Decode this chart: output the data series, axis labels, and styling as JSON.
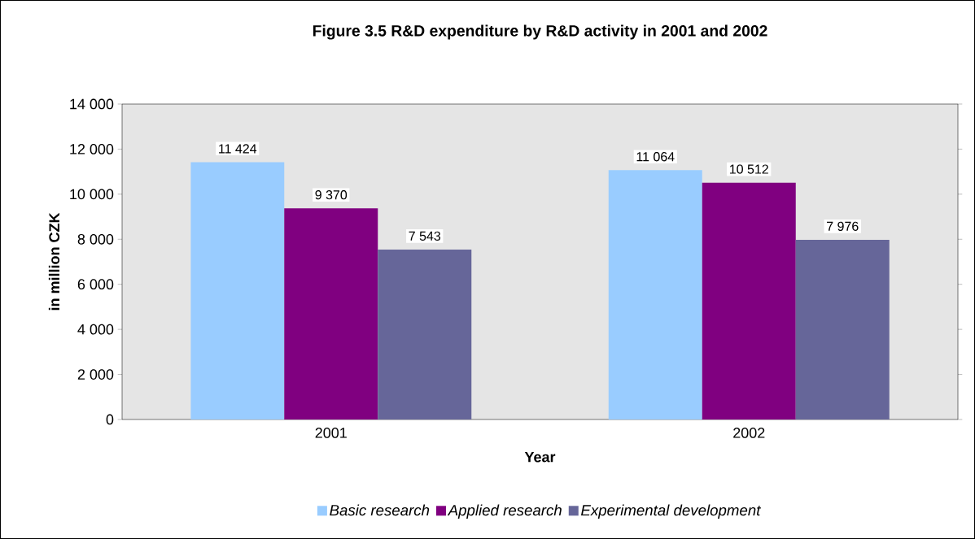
{
  "chart_data": {
    "type": "bar",
    "title": "Figure 3.5   R&D expenditure by R&D activity in 2001 and 2002",
    "xlabel": "Year",
    "ylabel": "in million CZK",
    "categories": [
      "2001",
      "2002"
    ],
    "series": [
      {
        "name": "Basic research",
        "color": "#99ccff",
        "values": [
          11424,
          11064
        ],
        "value_labels": [
          "11 424",
          "11 064"
        ]
      },
      {
        "name": "Applied research",
        "color": "#800080",
        "values": [
          9370,
          10512
        ],
        "value_labels": [
          "9 370",
          "10 512"
        ]
      },
      {
        "name": "Experimental development",
        "color": "#666699",
        "values": [
          7543,
          7976
        ],
        "value_labels": [
          "7 543",
          "7 976"
        ]
      }
    ],
    "ylim": [
      0,
      14000
    ],
    "yticks": [
      {
        "value": 0,
        "label": "0"
      },
      {
        "value": 2000,
        "label": "2 000"
      },
      {
        "value": 4000,
        "label": "4 000"
      },
      {
        "value": 6000,
        "label": "6 000"
      },
      {
        "value": 8000,
        "label": "8 000"
      },
      {
        "value": 10000,
        "label": "10 000"
      },
      {
        "value": 12000,
        "label": "12 000"
      },
      {
        "value": 14000,
        "label": "14 000"
      }
    ],
    "legend": "bottom",
    "grid": false
  }
}
